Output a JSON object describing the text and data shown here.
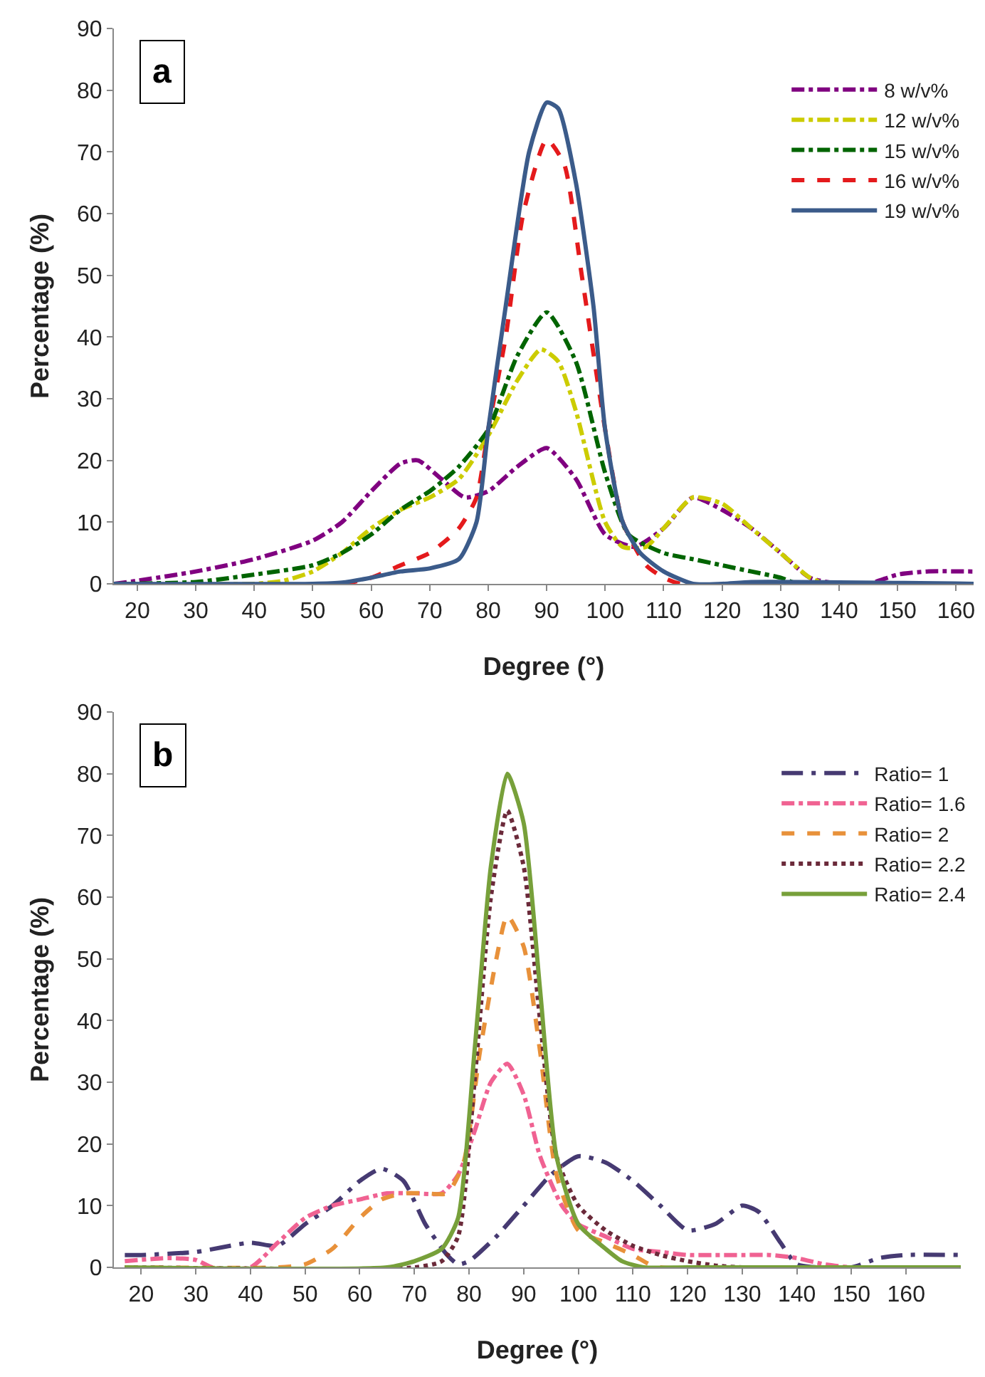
{
  "chart_data": [
    {
      "type": "line",
      "title": "a",
      "xlabel": "Degree (°)",
      "ylabel": "Percentage (%)",
      "xlim": [
        16,
        163
      ],
      "xticks": [
        20,
        30,
        40,
        50,
        60,
        70,
        80,
        90,
        100,
        110,
        120,
        130,
        140,
        150,
        160
      ],
      "ylim": [
        0,
        90
      ],
      "yticks": [
        0,
        10,
        20,
        30,
        40,
        50,
        60,
        70,
        80,
        90
      ],
      "grid": false,
      "legend": "top right",
      "series": [
        {
          "name": "8 w/v%",
          "color": "#800080",
          "line_style": "dashdot",
          "x": [
            16,
            20,
            30,
            40,
            50,
            55,
            60,
            65,
            68,
            72,
            76,
            80,
            85,
            90,
            95,
            100,
            105,
            110,
            115,
            120,
            125,
            130,
            135,
            140,
            145,
            150,
            155,
            163
          ],
          "values": [
            0,
            0.5,
            2,
            4,
            7,
            10,
            15,
            19.5,
            20,
            17,
            14,
            15,
            19,
            22,
            17,
            8,
            6,
            9,
            14,
            12,
            9,
            5,
            1,
            0,
            0,
            1.5,
            2,
            2
          ]
        },
        {
          "name": "12 w/v%",
          "color": "#cccc00",
          "line_style": "dashdot",
          "x": [
            16,
            40,
            45,
            50,
            55,
            60,
            65,
            70,
            75,
            80,
            85,
            89,
            92,
            95,
            100,
            103,
            107,
            110,
            115,
            120,
            125,
            130,
            135,
            138,
            163
          ],
          "values": [
            0,
            0,
            0.5,
            2,
            5,
            9,
            12,
            14,
            17,
            24,
            33,
            38,
            36,
            28,
            10,
            6,
            6,
            9,
            14,
            13,
            9,
            5,
            1,
            0,
            0
          ]
        },
        {
          "name": "15 w/v%",
          "color": "#006400",
          "line_style": "dashdot",
          "x": [
            16,
            30,
            40,
            50,
            55,
            60,
            65,
            70,
            72,
            75,
            80,
            85,
            90,
            95,
            100,
            104,
            110,
            115,
            120,
            125,
            130,
            133,
            163
          ],
          "values": [
            0,
            0.3,
            1.5,
            3,
            5,
            8,
            12,
            15,
            16.5,
            19,
            25,
            37,
            44,
            36,
            18,
            8,
            5,
            4,
            3,
            2,
            1,
            0,
            0
          ]
        },
        {
          "name": "16 w/v%",
          "color": "#e41a1c",
          "line_style": "dashed",
          "x": [
            16,
            55,
            60,
            65,
            70,
            75,
            78,
            80,
            83,
            86,
            90,
            93,
            96,
            100,
            103,
            107,
            110,
            113,
            163
          ],
          "values": [
            0,
            0,
            1,
            3,
            5,
            9,
            14,
            25,
            40,
            60,
            72,
            68,
            50,
            25,
            10,
            3,
            1,
            0,
            0
          ]
        },
        {
          "name": "19 w/v%",
          "color": "#3b5b8a",
          "line_style": "solid",
          "x": [
            16,
            50,
            55,
            60,
            65,
            70,
            75,
            78,
            80,
            83,
            87,
            90,
            92,
            95,
            98,
            100,
            103,
            106,
            110,
            115,
            120,
            125,
            163
          ],
          "values": [
            0,
            0,
            0.2,
            1,
            2,
            2.5,
            4,
            10,
            25,
            45,
            70,
            78,
            77,
            65,
            45,
            25,
            10,
            5,
            2,
            0,
            0,
            0.3,
            0
          ]
        }
      ]
    },
    {
      "type": "line",
      "title": "b",
      "xlabel": "Degree (°)",
      "ylabel": "Percentage (%)",
      "xlim": [
        15,
        170
      ],
      "xticks": [
        20,
        30,
        40,
        50,
        60,
        70,
        80,
        90,
        100,
        110,
        120,
        130,
        140,
        150,
        160
      ],
      "ylim": [
        0,
        90
      ],
      "yticks": [
        0,
        10,
        20,
        30,
        40,
        50,
        60,
        70,
        80,
        90
      ],
      "grid": false,
      "legend": "top right",
      "series": [
        {
          "name": "Ratio= 1",
          "color": "#463a72",
          "line_style": "longdashdot",
          "x": [
            17,
            20,
            30,
            40,
            45,
            50,
            55,
            60,
            64,
            68,
            72,
            76,
            78,
            80,
            85,
            90,
            95,
            100,
            105,
            110,
            115,
            120,
            125,
            130,
            133,
            137,
            140,
            150,
            155,
            160,
            170
          ],
          "values": [
            2,
            2,
            2.5,
            4,
            3.5,
            7,
            10,
            14,
            16,
            14,
            7,
            2,
            0.5,
            1,
            5,
            10,
            15,
            18,
            17,
            14,
            10,
            6,
            7,
            10,
            9,
            4,
            0.5,
            0,
            1.5,
            2,
            2
          ]
        },
        {
          "name": "Ratio= 1.6",
          "color": "#f06292",
          "line_style": "dashdot",
          "x": [
            17,
            25,
            30,
            33,
            40,
            45,
            50,
            55,
            60,
            65,
            70,
            75,
            78,
            81,
            84,
            87,
            90,
            93,
            97,
            100,
            105,
            110,
            115,
            120,
            125,
            130,
            135,
            140,
            145,
            150,
            170
          ],
          "values": [
            1,
            1.5,
            1.2,
            0,
            0,
            4,
            8,
            10,
            11,
            12,
            12,
            12,
            15,
            22,
            30,
            33,
            28,
            18,
            10,
            7,
            5,
            3,
            2.5,
            2,
            2,
            2,
            2,
            1.5,
            0.5,
            0,
            0
          ]
        },
        {
          "name": "Ratio= 2",
          "color": "#e8913a",
          "line_style": "dashed",
          "x": [
            17,
            45,
            50,
            55,
            60,
            64,
            68,
            72,
            76,
            79,
            82,
            85,
            87,
            90,
            93,
            96,
            100,
            105,
            110,
            113,
            115,
            170
          ],
          "values": [
            0,
            0,
            0.5,
            3,
            8,
            11,
            12,
            12,
            12,
            17,
            35,
            50,
            57,
            52,
            35,
            15,
            6,
            4,
            2,
            0.5,
            0,
            0
          ]
        },
        {
          "name": "Ratio= 2.2",
          "color": "#6b2a3a",
          "line_style": "dotted",
          "x": [
            17,
            70,
            75,
            78,
            81,
            84,
            87,
            90,
            93,
            96,
            100,
            105,
            110,
            115,
            120,
            125,
            130,
            170
          ],
          "values": [
            0,
            0,
            1,
            5,
            30,
            60,
            74,
            65,
            40,
            18,
            10,
            6,
            3.5,
            2,
            1,
            0.3,
            0,
            0
          ]
        },
        {
          "name": "Ratio= 2.4",
          "color": "#77a03a",
          "line_style": "solid",
          "x": [
            17,
            65,
            70,
            75,
            78,
            81,
            84,
            87,
            90,
            93,
            96,
            100,
            105,
            108,
            112,
            120,
            170
          ],
          "values": [
            0,
            0,
            1,
            3,
            8,
            35,
            65,
            80,
            72,
            45,
            18,
            7,
            3,
            1,
            0,
            0,
            0
          ]
        }
      ]
    }
  ]
}
